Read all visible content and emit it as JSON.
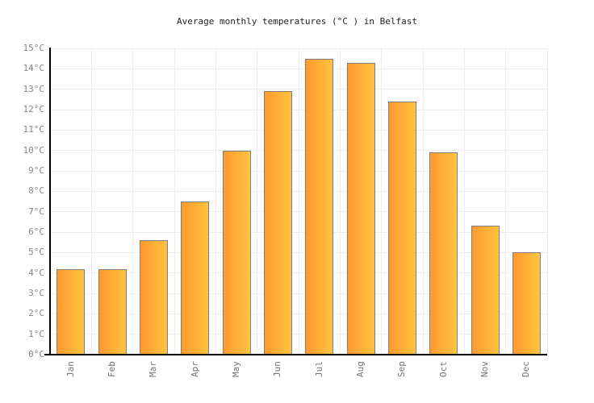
{
  "title": "Average monthly temperatures (°C ) in Belfast",
  "chart_data": {
    "type": "bar",
    "title": "Average monthly temperatures (°C ) in Belfast",
    "categories": [
      "Jan",
      "Feb",
      "Mar",
      "Apr",
      "May",
      "Jun",
      "Jul",
      "Aug",
      "Sep",
      "Oct",
      "Nov",
      "Dec"
    ],
    "values": [
      4.2,
      4.2,
      5.6,
      7.5,
      10.0,
      12.9,
      14.5,
      14.3,
      12.4,
      9.9,
      6.3,
      5.0
    ],
    "xlabel": "",
    "ylabel": "",
    "ylim": [
      0,
      15
    ],
    "ytick_step": 1,
    "ytick_suffix": "°C",
    "grid": true,
    "legend_position": "none",
    "colors": {
      "bar_gradient_left": "#ff9a30",
      "bar_gradient_right": "#ffc33e",
      "bar_border": "#7d7d7d",
      "gridline": "#ededed",
      "axis": "#000000",
      "y_tick_label": "#858585",
      "x_tick_label": "#757575",
      "title": "#222222",
      "background": "#ffffff"
    }
  }
}
